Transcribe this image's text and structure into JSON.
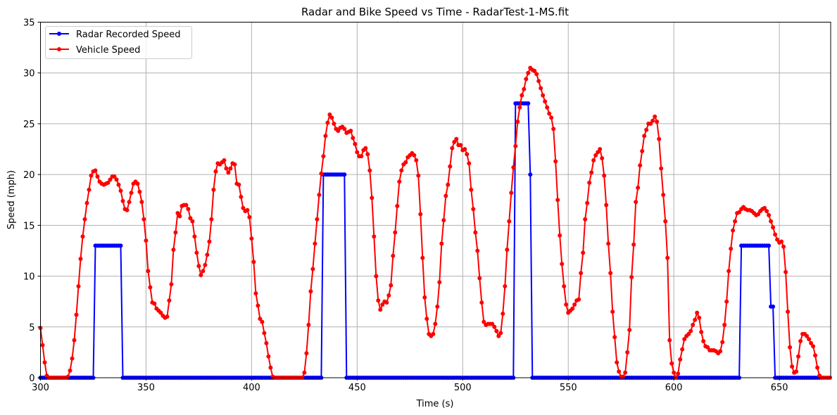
{
  "chart_data": {
    "type": "line",
    "title": "Radar and Bike Speed vs Time - RadarTest-1-MS.fit",
    "xlabel": "Time (s)",
    "ylabel": "Speed (mph)",
    "xlim": [
      300,
      674.3
    ],
    "ylim": [
      0,
      35
    ],
    "xticks": [
      300,
      350,
      400,
      450,
      500,
      550,
      600,
      650
    ],
    "yticks": [
      0,
      5,
      10,
      15,
      20,
      25,
      30,
      35
    ],
    "grid": true,
    "legend_position": "top-left",
    "x_start": 300,
    "x_step": 1,
    "series": [
      {
        "name": "Radar Recorded Speed",
        "color": "#0000ff",
        "values": [
          0,
          0,
          0,
          0,
          0,
          0,
          0,
          0,
          0,
          0,
          0,
          0,
          0,
          0,
          0,
          0,
          0,
          0,
          0,
          0,
          0,
          0,
          0,
          0,
          0,
          0,
          13,
          13,
          13,
          13,
          13,
          13,
          13,
          13,
          13,
          13,
          13,
          13,
          13,
          0,
          0,
          0,
          0,
          0,
          0,
          0,
          0,
          0,
          0,
          0,
          0,
          0,
          0,
          0,
          0,
          0,
          0,
          0,
          0,
          0,
          0,
          0,
          0,
          0,
          0,
          0,
          0,
          0,
          0,
          0,
          0,
          0,
          0,
          0,
          0,
          0,
          0,
          0,
          0,
          0,
          0,
          0,
          0,
          0,
          0,
          0,
          0,
          0,
          0,
          0,
          0,
          0,
          0,
          0,
          0,
          0,
          0,
          0,
          0,
          0,
          0,
          0,
          0,
          0,
          0,
          0,
          0,
          0,
          0,
          0,
          0,
          0,
          0,
          0,
          0,
          0,
          0,
          0,
          0,
          0,
          0,
          0,
          0,
          0,
          0,
          0,
          0,
          0,
          0,
          0,
          0,
          0,
          0,
          0,
          20,
          20,
          20,
          20,
          20,
          20,
          20,
          20,
          20,
          20,
          20,
          0,
          0,
          0,
          0,
          0,
          0,
          0,
          0,
          0,
          0,
          0,
          0,
          0,
          0,
          0,
          0,
          0,
          0,
          0,
          0,
          0,
          0,
          0,
          0,
          0,
          0,
          0,
          0,
          0,
          0,
          0,
          0,
          0,
          0,
          0,
          0,
          0,
          0,
          0,
          0,
          0,
          0,
          0,
          0,
          0,
          0,
          0,
          0,
          0,
          0,
          0,
          0,
          0,
          0,
          0,
          0,
          0,
          0,
          0,
          0,
          0,
          0,
          0,
          0,
          0,
          0,
          0,
          0,
          0,
          0,
          0,
          0,
          0,
          0,
          0,
          0,
          0,
          0,
          0,
          0,
          27,
          27,
          27,
          27,
          27,
          27,
          27,
          20,
          0,
          0,
          0,
          0,
          0,
          0,
          0,
          0,
          0,
          0,
          0,
          0,
          0,
          0,
          0,
          0,
          0,
          0,
          0,
          0,
          0,
          0,
          0,
          0,
          0,
          0,
          0,
          0,
          0,
          0,
          0,
          0,
          0,
          0,
          0,
          0,
          0,
          0,
          0,
          0,
          0,
          0,
          0,
          0,
          0,
          0,
          0,
          0,
          0,
          0,
          0,
          0,
          0,
          0,
          0,
          0,
          0,
          0,
          0,
          0,
          0,
          0,
          0,
          0,
          0,
          0,
          0,
          0,
          0,
          0,
          0,
          0,
          0,
          0,
          0,
          0,
          0,
          0,
          0,
          0,
          0,
          0,
          0,
          0,
          0,
          0,
          0,
          0,
          0,
          0,
          0,
          0,
          0,
          0,
          0,
          0,
          0,
          0,
          0,
          13,
          13,
          13,
          13,
          13,
          13,
          13,
          13,
          13,
          13,
          13,
          13,
          13,
          13,
          7,
          7,
          0,
          0,
          0,
          0,
          0,
          0,
          0,
          0,
          0,
          0,
          0,
          0,
          0,
          0,
          0,
          0,
          0,
          0,
          0,
          0,
          0,
          0,
          0
        ]
      },
      {
        "name": "Vehicle Speed",
        "color": "#ff0000",
        "values": [
          4.9,
          3.2,
          1.5,
          0.2,
          0,
          0,
          0,
          0,
          0,
          0,
          0,
          0,
          0,
          0.1,
          0.7,
          1.9,
          3.7,
          6.2,
          9.0,
          11.7,
          13.9,
          15.6,
          17.2,
          18.5,
          19.9,
          20.3,
          20.4,
          19.8,
          19.3,
          19.1,
          19.0,
          19.1,
          19.2,
          19.5,
          19.8,
          19.8,
          19.5,
          19.0,
          18.4,
          17.4,
          16.6,
          16.5,
          17.3,
          18.2,
          19.1,
          19.3,
          19.1,
          18.3,
          17.3,
          15.6,
          13.5,
          10.5,
          8.9,
          7.4,
          7.3,
          6.8,
          6.6,
          6.4,
          6.1,
          5.9,
          6.0,
          7.6,
          9.2,
          12.6,
          14.3,
          16.2,
          15.9,
          16.9,
          17.0,
          17.0,
          16.6,
          15.7,
          15.4,
          13.9,
          12.3,
          11.0,
          10.1,
          10.5,
          11.1,
          12.1,
          13.4,
          15.6,
          18.5,
          20.3,
          21.1,
          21.0,
          21.2,
          21.4,
          20.6,
          20.2,
          20.6,
          21.1,
          21.0,
          19.1,
          19.0,
          17.8,
          16.7,
          16.4,
          16.5,
          15.8,
          13.7,
          11.4,
          8.3,
          7.1,
          5.8,
          5.5,
          4.4,
          3.4,
          2.1,
          1.0,
          0.1,
          0,
          0,
          0,
          0,
          0,
          0,
          0,
          0,
          0,
          0,
          0,
          0,
          0,
          0,
          0.5,
          2.4,
          5.2,
          8.5,
          10.7,
          13.2,
          15.6,
          18.0,
          20.1,
          21.8,
          23.8,
          25.1,
          25.9,
          25.6,
          25.0,
          24.5,
          24.3,
          24.6,
          24.7,
          24.5,
          24.1,
          24.2,
          24.3,
          23.6,
          23.0,
          22.2,
          21.8,
          21.8,
          22.4,
          22.6,
          22.0,
          20.4,
          17.7,
          13.9,
          10.0,
          7.6,
          6.7,
          7.2,
          7.5,
          7.4,
          8.1,
          9.1,
          12.0,
          14.3,
          16.9,
          19.3,
          20.4,
          21.0,
          21.2,
          21.7,
          21.9,
          22.1,
          21.9,
          21.4,
          19.9,
          16.1,
          11.8,
          7.9,
          5.8,
          4.3,
          4.1,
          4.3,
          5.3,
          7.0,
          9.4,
          13.2,
          15.5,
          17.9,
          19.0,
          20.8,
          22.6,
          23.2,
          23.5,
          22.9,
          22.9,
          22.4,
          22.5,
          22.0,
          21.1,
          18.5,
          16.6,
          14.3,
          12.5,
          9.8,
          7.4,
          5.5,
          5.2,
          5.3,
          5.3,
          5.3,
          5.0,
          4.6,
          4.1,
          4.4,
          6.3,
          9.0,
          12.6,
          15.4,
          18.2,
          20.7,
          22.8,
          25.2,
          26.6,
          27.8,
          28.4,
          29.4,
          30.0,
          30.5,
          30.3,
          30.2,
          29.9,
          29.2,
          28.5,
          27.8,
          27.2,
          26.6,
          26.0,
          25.6,
          24.5,
          21.3,
          17.5,
          14.0,
          11.2,
          9.0,
          7.2,
          6.4,
          6.6,
          6.8,
          7.2,
          7.6,
          7.7,
          10.3,
          12.3,
          15.6,
          17.2,
          19.2,
          20.2,
          21.4,
          21.9,
          22.2,
          22.5,
          21.6,
          19.9,
          17.0,
          13.2,
          10.3,
          6.5,
          4.0,
          1.5,
          0.6,
          0.1,
          0.1,
          0.5,
          2.5,
          4.7,
          9.9,
          13.1,
          17.3,
          18.7,
          20.9,
          22.3,
          23.8,
          24.4,
          25.0,
          25.0,
          25.3,
          25.7,
          25.2,
          23.5,
          20.6,
          18.0,
          15.4,
          11.8,
          3.7,
          1.4,
          0.5,
          0,
          0.4,
          1.8,
          2.8,
          3.8,
          4.1,
          4.3,
          4.6,
          5.2,
          5.7,
          6.4,
          5.9,
          4.5,
          3.6,
          3.1,
          3.0,
          2.7,
          2.7,
          2.7,
          2.6,
          2.4,
          2.6,
          3.5,
          5.2,
          7.5,
          10.5,
          12.7,
          14.5,
          15.4,
          16.2,
          16.3,
          16.6,
          16.8,
          16.6,
          16.5,
          16.5,
          16.4,
          16.2,
          16.0,
          16.1,
          16.4,
          16.6,
          16.7,
          16.4,
          16.0,
          15.4,
          14.8,
          14.1,
          13.6,
          13.3,
          13.4,
          12.9,
          10.4,
          6.5,
          3.0,
          1.1,
          0.5,
          0.6,
          2.1,
          3.6,
          4.3,
          4.3,
          4.1,
          3.8,
          3.4,
          3.1,
          2.2,
          1.0,
          0.2,
          0,
          0,
          0,
          0,
          0
        ]
      }
    ]
  }
}
